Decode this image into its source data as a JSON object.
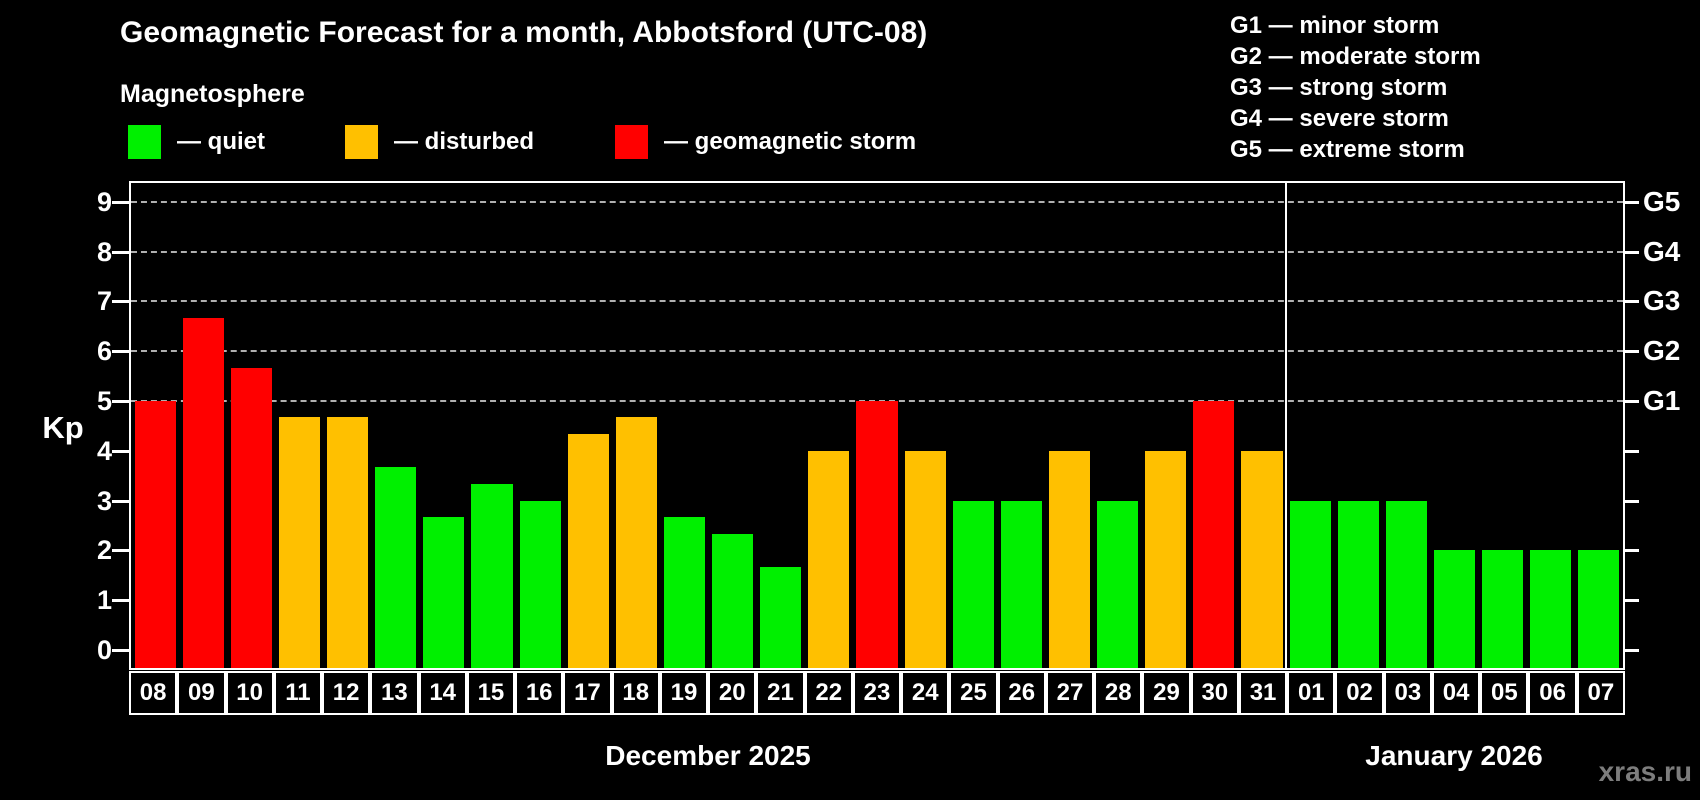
{
  "header": {
    "title": "Geomagnetic Forecast for a month, Abbotsford (UTC-08)",
    "subtitle": "Magnetosphere"
  },
  "legend": {
    "quiet_label": "— quiet",
    "disturbed_label": "— disturbed",
    "storm_label": "— geomagnetic storm"
  },
  "g_legend": [
    "G1 — minor storm",
    "G2 — moderate storm",
    "G3 — strong storm",
    "G4 — severe storm",
    "G5 — extreme storm"
  ],
  "watermark": "xras.ru",
  "colors": {
    "quiet": "#00f000",
    "disturbed": "#ffc000",
    "storm": "#ff0000",
    "axis": "#ffffff",
    "gridline": "#b0b0b0",
    "watermark": "#7d7d7d",
    "background": "#000000"
  },
  "chart_data": {
    "type": "bar",
    "title": "Geomagnetic Forecast for a month, Abbotsford (UTC-08)",
    "ylabel": "Kp",
    "ylim": [
      0,
      9
    ],
    "y_ticks": [
      0,
      1,
      2,
      3,
      4,
      5,
      6,
      7,
      8,
      9
    ],
    "grid": "dashed horizontal lines only at storm levels",
    "dashed_gridlines_at_kp": [
      5,
      6,
      7,
      8,
      9
    ],
    "right_axis": {
      "labels": [
        "G1",
        "G2",
        "G3",
        "G4",
        "G5"
      ],
      "at_kp": [
        5,
        6,
        7,
        8,
        9
      ]
    },
    "months": [
      {
        "label": "December 2025",
        "days": [
          "08",
          "09",
          "10",
          "11",
          "12",
          "13",
          "14",
          "15",
          "16",
          "17",
          "18",
          "19",
          "20",
          "21",
          "22",
          "23",
          "24",
          "25",
          "26",
          "27",
          "28",
          "29",
          "30",
          "31"
        ],
        "values": [
          5,
          6.67,
          5.67,
          4.67,
          4.67,
          3.67,
          2.67,
          3.33,
          3,
          4.33,
          4.67,
          2.67,
          2.33,
          1.67,
          4,
          5,
          4,
          3,
          3,
          4,
          3,
          4,
          5,
          4
        ]
      },
      {
        "label": "January 2026",
        "days": [
          "01",
          "02",
          "03",
          "04",
          "05",
          "06",
          "07"
        ],
        "values": [
          3,
          3,
          3,
          2,
          2,
          2,
          2
        ]
      }
    ],
    "series": [
      {
        "name": "Kp forecast",
        "values": [
          5,
          6.67,
          5.67,
          4.67,
          4.67,
          3.67,
          2.67,
          3.33,
          3,
          4.33,
          4.67,
          2.67,
          2.33,
          1.67,
          4,
          5,
          4,
          3,
          3,
          4,
          3,
          4,
          5,
          4,
          3,
          3,
          3,
          2,
          2,
          2,
          2
        ]
      }
    ],
    "categories": [
      "08",
      "09",
      "10",
      "11",
      "12",
      "13",
      "14",
      "15",
      "16",
      "17",
      "18",
      "19",
      "20",
      "21",
      "22",
      "23",
      "24",
      "25",
      "26",
      "27",
      "28",
      "29",
      "30",
      "31",
      "01",
      "02",
      "03",
      "04",
      "05",
      "06",
      "07"
    ],
    "color_thresholds": {
      "storm_min_kp": 5,
      "disturbed_min_kp": 4
    },
    "legend_position": "top-left",
    "legend_entries": [
      "quiet",
      "disturbed",
      "geomagnetic storm"
    ]
  }
}
